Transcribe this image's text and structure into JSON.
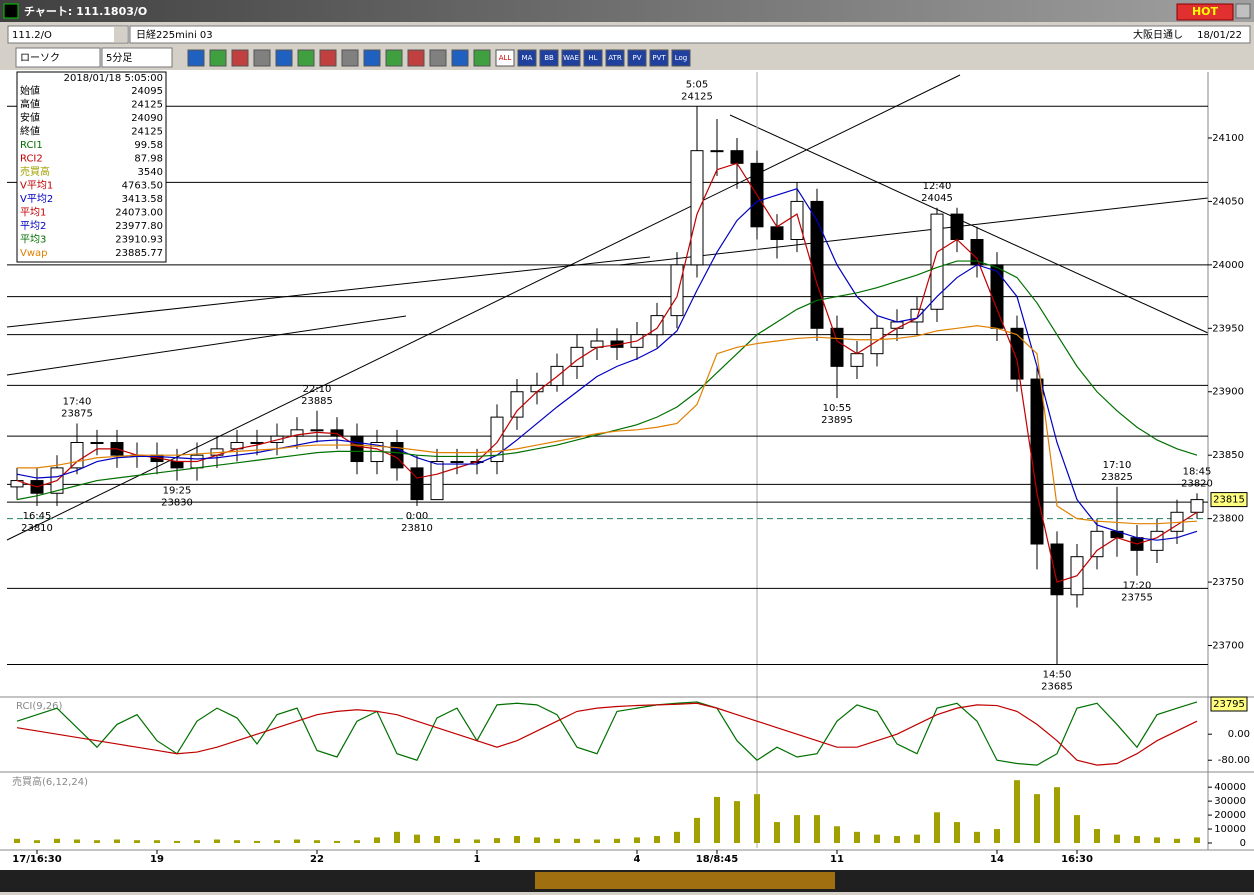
{
  "window": {
    "title": "チャート: 111.1803/O",
    "hot": "HOT"
  },
  "toolbar": {
    "symbol": "111.2/O",
    "name": "日経225mini 03",
    "market": "大阪日通し",
    "date": "18/01/22",
    "chart_kind": "ローソク",
    "period": "5分足",
    "buttons": [
      "ALL",
      "MA",
      "BB",
      "WAE",
      "HL",
      "ATR",
      "PV",
      "PVT",
      "Log"
    ]
  },
  "info": {
    "datetime": "2018/01/18 5:05:00",
    "rows": [
      {
        "label": "始値",
        "value": "24095",
        "color": "#000000"
      },
      {
        "label": "高値",
        "value": "24125",
        "color": "#000000"
      },
      {
        "label": "安値",
        "value": "24090",
        "color": "#000000"
      },
      {
        "label": "終値",
        "value": "24125",
        "color": "#000000"
      },
      {
        "label": "RCI1",
        "value": "99.58",
        "color": "#007000"
      },
      {
        "label": "RCI2",
        "value": "87.98",
        "color": "#c00000"
      },
      {
        "label": "売買高",
        "value": "3540",
        "color": "#a0a000"
      },
      {
        "label": "V平均1",
        "value": "4763.50",
        "color": "#c00000"
      },
      {
        "label": "V平均2",
        "value": "3413.58",
        "color": "#0000c0"
      },
      {
        "label": "平均1",
        "value": "24073.00",
        "color": "#c00000"
      },
      {
        "label": "平均2",
        "value": "23977.80",
        "color": "#0000c0"
      },
      {
        "label": "平均3",
        "value": "23910.93",
        "color": "#007000"
      },
      {
        "label": "Vwap",
        "value": "23885.77",
        "color": "#e08000"
      }
    ]
  },
  "chart_data": {
    "type": "candlestick",
    "xlim": [
      -0.5,
      59.5
    ],
    "xticks": [
      {
        "value": 1,
        "label": "17/16:30"
      },
      {
        "value": 7,
        "label": "19"
      },
      {
        "value": 15,
        "label": "22"
      },
      {
        "value": 23,
        "label": "1"
      },
      {
        "value": 31,
        "label": "4"
      },
      {
        "value": 35,
        "label": "18/8:45"
      },
      {
        "value": 41,
        "label": "11"
      },
      {
        "value": 49,
        "label": "14"
      },
      {
        "value": 53,
        "label": "16:30"
      }
    ],
    "ylim": [
      23661,
      24152
    ],
    "yticks": [
      23700,
      23750,
      23800,
      23850,
      23900,
      23950,
      24000,
      24050,
      24100
    ],
    "open": [
      23825,
      23830,
      23820,
      23840,
      23860,
      23860,
      23850,
      23850,
      23845,
      23840,
      23850,
      23855,
      23860,
      23860,
      23865,
      23870,
      23870,
      23865,
      23845,
      23860,
      23840,
      23815,
      23845,
      23845,
      23845,
      23880,
      23900,
      23905,
      23920,
      23935,
      23940,
      23935,
      23945,
      23960,
      24000,
      24090,
      24090,
      24080,
      24030,
      24020,
      24050,
      23950,
      23920,
      23930,
      23950,
      23955,
      23965,
      24040,
      24020,
      24000,
      23950,
      23910,
      23780,
      23740,
      23770,
      23790,
      23785,
      23775,
      23790,
      23805
    ],
    "high": [
      23840,
      23840,
      23850,
      23875,
      23870,
      23870,
      23860,
      23860,
      23855,
      23860,
      23865,
      23870,
      23870,
      23875,
      23880,
      23885,
      23880,
      23875,
      23870,
      23870,
      23850,
      23855,
      23855,
      23855,
      23890,
      23910,
      23915,
      23930,
      23945,
      23950,
      23950,
      23955,
      23970,
      24010,
      24125,
      24115,
      24100,
      24090,
      24040,
      24065,
      24060,
      23960,
      23940,
      23960,
      23965,
      23975,
      24045,
      24045,
      24030,
      24010,
      23960,
      23920,
      23790,
      23780,
      23800,
      23825,
      23795,
      23800,
      23815,
      23820
    ],
    "low": [
      23815,
      23810,
      23810,
      23835,
      23850,
      23840,
      23840,
      23835,
      23830,
      23830,
      23840,
      23845,
      23850,
      23850,
      23855,
      23860,
      23855,
      23835,
      23835,
      23830,
      23810,
      23815,
      23835,
      23835,
      23835,
      23870,
      23890,
      23900,
      23910,
      23925,
      23925,
      23925,
      23935,
      23950,
      23990,
      24070,
      24060,
      24020,
      24005,
      24010,
      23940,
      23895,
      23910,
      23920,
      23940,
      23945,
      23955,
      24010,
      23990,
      23940,
      23900,
      23760,
      23685,
      23730,
      23760,
      23770,
      23755,
      23765,
      23780,
      23800
    ],
    "close": [
      23830,
      23820,
      23840,
      23860,
      23860,
      23850,
      23850,
      23845,
      23840,
      23850,
      23855,
      23860,
      23860,
      23865,
      23870,
      23870,
      23865,
      23845,
      23860,
      23840,
      23815,
      23845,
      23845,
      23845,
      23880,
      23900,
      23905,
      23920,
      23935,
      23940,
      23935,
      23945,
      23960,
      24000,
      24090,
      24090,
      24080,
      24030,
      24020,
      24050,
      23950,
      23920,
      23930,
      23950,
      23955,
      23965,
      24040,
      24020,
      24000,
      23950,
      23910,
      23780,
      23740,
      23770,
      23790,
      23785,
      23775,
      23790,
      23805,
      23815
    ],
    "up_color": "#ffffff",
    "down_color": "#000000",
    "series": [
      {
        "name": "平均1",
        "color": "#c00000",
        "values": [
          23830,
          23825,
          23830,
          23845,
          23855,
          23855,
          23850,
          23848,
          23845,
          23845,
          23850,
          23855,
          23858,
          23862,
          23866,
          23868,
          23867,
          23857,
          23855,
          23848,
          23832,
          23835,
          23840,
          23845,
          23860,
          23885,
          23900,
          23912,
          23925,
          23935,
          23937,
          23940,
          23950,
          23975,
          24040,
          24075,
          24080,
          24055,
          24030,
          24040,
          23985,
          23940,
          23930,
          23940,
          23950,
          23958,
          24010,
          24020,
          24005,
          23965,
          23925,
          23820,
          23750,
          23755,
          23775,
          23785,
          23780,
          23785,
          23795,
          23805
        ]
      },
      {
        "name": "平均2",
        "color": "#0000c0",
        "values": [
          23835,
          23832,
          23833,
          23838,
          23845,
          23848,
          23849,
          23849,
          23848,
          23847,
          23848,
          23850,
          23852,
          23855,
          23858,
          23861,
          23862,
          23860,
          23858,
          23855,
          23848,
          23843,
          23843,
          23843,
          23850,
          23862,
          23875,
          23888,
          23900,
          23912,
          23920,
          23926,
          23934,
          23948,
          23980,
          24010,
          24035,
          24050,
          24055,
          24060,
          24035,
          24000,
          23975,
          23960,
          23955,
          23958,
          23975,
          23990,
          24000,
          23995,
          23975,
          23920,
          23860,
          23815,
          23795,
          23790,
          23785,
          23783,
          23785,
          23790
        ]
      },
      {
        "name": "平均3",
        "color": "#007000",
        "values": [
          23815,
          23818,
          23822,
          23826,
          23830,
          23832,
          23834,
          23836,
          23838,
          23840,
          23842,
          23844,
          23846,
          23848,
          23850,
          23852,
          23853,
          23853,
          23853,
          23852,
          23850,
          23849,
          23849,
          23849,
          23850,
          23852,
          23855,
          23858,
          23862,
          23866,
          23870,
          23874,
          23880,
          23888,
          23900,
          23915,
          23930,
          23945,
          23955,
          23965,
          23972,
          23975,
          23978,
          23982,
          23987,
          23992,
          23998,
          24003,
          24003,
          23998,
          23990,
          23970,
          23945,
          23920,
          23900,
          23885,
          23872,
          23862,
          23855,
          23850
        ]
      },
      {
        "name": "Vwap",
        "color": "#e08000",
        "values": [
          23840,
          23840,
          23842,
          23845,
          23848,
          23849,
          23850,
          23850,
          23850,
          23851,
          23852,
          23853,
          23854,
          23855,
          23857,
          23858,
          23858,
          23858,
          23857,
          23856,
          23854,
          23852,
          23852,
          23852,
          23853,
          23855,
          23858,
          23861,
          23864,
          23867,
          23869,
          23870,
          23872,
          23875,
          23890,
          23930,
          23935,
          23938,
          23940,
          23942,
          23943,
          23942,
          23941,
          23941,
          23942,
          23944,
          23948,
          23950,
          23952,
          23950,
          23945,
          23930,
          23810,
          23800,
          23798,
          23797,
          23796,
          23796,
          23797,
          23798
        ]
      }
    ],
    "levels": [
      24125,
      24065,
      24000,
      23975,
      23945,
      23905,
      23865,
      23827,
      23813,
      23745,
      23685
    ],
    "dashed_level": 23800,
    "last_price": 23815,
    "annotations": [
      {
        "time": "17:40",
        "price": 23875,
        "side": "high"
      },
      {
        "time": "22:10",
        "price": 23885,
        "side": "high"
      },
      {
        "time": "5:05",
        "price": 24125,
        "side": "high"
      },
      {
        "time": "12:40",
        "price": 24045,
        "side": "high"
      },
      {
        "time": "17:10",
        "price": 23825,
        "side": "high"
      },
      {
        "time": "18:45",
        "price": 23820,
        "side": "high"
      },
      {
        "time": "16:45",
        "price": 23810,
        "side": "low"
      },
      {
        "time": "19:25",
        "price": 23830,
        "side": "low"
      },
      {
        "time": "0:00",
        "price": 23810,
        "side": "low"
      },
      {
        "time": "10:55",
        "price": 23895,
        "side": "low"
      },
      {
        "time": "14:50",
        "price": 23685,
        "side": "low"
      },
      {
        "time": "17:20",
        "price": 23755,
        "side": "low"
      }
    ],
    "rci": {
      "title": "RCI(9,26)",
      "ylim": [
        -110,
        105
      ],
      "yticks": [
        {
          "value": 0,
          "label": "0.00"
        },
        {
          "value": -80,
          "label": "-80.00"
        }
      ],
      "badge": "23795",
      "series": [
        {
          "name": "RCI1",
          "color": "#007000",
          "values": [
            40,
            60,
            80,
            20,
            -40,
            30,
            60,
            -20,
            -60,
            40,
            80,
            50,
            -30,
            60,
            80,
            -50,
            -70,
            40,
            70,
            -60,
            -80,
            50,
            80,
            -20,
            90,
            95,
            90,
            60,
            -40,
            -60,
            70,
            80,
            90,
            95,
            99,
            80,
            -20,
            -80,
            -40,
            -70,
            -60,
            40,
            90,
            70,
            -30,
            -60,
            80,
            95,
            40,
            -80,
            -90,
            -95,
            -60,
            80,
            95,
            30,
            -40,
            60,
            80,
            99
          ]
        },
        {
          "name": "RCI2",
          "color": "#c00000",
          "values": [
            20,
            10,
            0,
            -10,
            -20,
            -30,
            -40,
            -50,
            -60,
            -55,
            -40,
            -20,
            0,
            20,
            40,
            60,
            70,
            75,
            70,
            60,
            40,
            20,
            0,
            -20,
            -40,
            -20,
            10,
            40,
            70,
            80,
            85,
            88,
            90,
            92,
            95,
            80,
            60,
            40,
            20,
            0,
            -20,
            -40,
            -40,
            -20,
            0,
            30,
            60,
            80,
            90,
            88,
            70,
            30,
            -20,
            -80,
            -95,
            -90,
            -60,
            -20,
            10,
            40
          ]
        }
      ]
    },
    "volume": {
      "title": "売買高(6,12,24)",
      "ylim": [
        0,
        48000
      ],
      "yticks": [
        0,
        10000,
        20000,
        30000,
        40000
      ],
      "color": "#a0a000",
      "values": [
        3000,
        2000,
        3000,
        2500,
        2000,
        2500,
        2000,
        2000,
        1500,
        2000,
        2500,
        2000,
        1500,
        2000,
        2500,
        2000,
        1500,
        2000,
        4000,
        8000,
        6000,
        5000,
        3000,
        2500,
        3500,
        5000,
        4000,
        3000,
        3000,
        2500,
        3000,
        4000,
        5000,
        8000,
        18000,
        33000,
        30000,
        35000,
        15000,
        20000,
        20000,
        12000,
        8000,
        6000,
        5000,
        6000,
        22000,
        15000,
        8000,
        10000,
        45000,
        35000,
        40000,
        20000,
        10000,
        6000,
        5000,
        4000,
        3000,
        4000
      ]
    }
  }
}
